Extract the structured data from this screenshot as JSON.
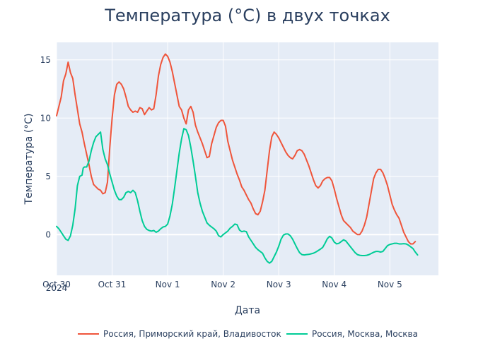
{
  "chart_data": {
    "type": "line",
    "title": "Температура (°C) в двух точках",
    "xlabel": "Дата",
    "ylabel": "Температура (°C)",
    "x_ticks": [
      "Oct 30",
      "Oct 31",
      "Nov 1",
      "Nov 2",
      "Nov 3",
      "Nov 4",
      "Nov 5"
    ],
    "x_tick_year": "2024",
    "y_ticks": [
      0,
      5,
      10,
      15
    ],
    "xlim": [
      0,
      165
    ],
    "ylim": [
      -3.5,
      16.5
    ],
    "grid": true,
    "legend_position": "bottom",
    "series": [
      {
        "name": "Россия, Приморский край, Владивосток",
        "color": "#ef553b",
        "points": [
          [
            0,
            10.2
          ],
          [
            2,
            11.8
          ],
          [
            3,
            13.2
          ],
          [
            4,
            13.8
          ],
          [
            5,
            14.8
          ],
          [
            6,
            13.9
          ],
          [
            7,
            13.4
          ],
          [
            8,
            12.0
          ],
          [
            10,
            9.5
          ],
          [
            11,
            8.8
          ],
          [
            12,
            7.8
          ],
          [
            14,
            6.0
          ],
          [
            15,
            5.0
          ],
          [
            16,
            4.3
          ],
          [
            18,
            3.9
          ],
          [
            19,
            3.8
          ],
          [
            20,
            3.5
          ],
          [
            21,
            3.6
          ],
          [
            22,
            4.5
          ],
          [
            23,
            7.5
          ],
          [
            24,
            10.0
          ],
          [
            25,
            12.0
          ],
          [
            26,
            12.9
          ],
          [
            27,
            13.1
          ],
          [
            28,
            12.9
          ],
          [
            29,
            12.5
          ],
          [
            30,
            11.8
          ],
          [
            31,
            11.0
          ],
          [
            32,
            10.7
          ],
          [
            33,
            10.5
          ],
          [
            34,
            10.6
          ],
          [
            35,
            10.5
          ],
          [
            36,
            10.9
          ],
          [
            37,
            10.8
          ],
          [
            38,
            10.3
          ],
          [
            39,
            10.6
          ],
          [
            40,
            10.9
          ],
          [
            41,
            10.7
          ],
          [
            42,
            10.8
          ],
          [
            43,
            12.0
          ],
          [
            44,
            13.6
          ],
          [
            45,
            14.6
          ],
          [
            46,
            15.2
          ],
          [
            47,
            15.5
          ],
          [
            48,
            15.3
          ],
          [
            49,
            14.8
          ],
          [
            50,
            14.0
          ],
          [
            51,
            13.0
          ],
          [
            52,
            12.0
          ],
          [
            53,
            11.0
          ],
          [
            54,
            10.7
          ],
          [
            55,
            10.0
          ],
          [
            56,
            9.5
          ],
          [
            57,
            10.7
          ],
          [
            58,
            11.0
          ],
          [
            59,
            10.5
          ],
          [
            60,
            9.4
          ],
          [
            61,
            8.8
          ],
          [
            62,
            8.3
          ],
          [
            63,
            7.8
          ],
          [
            64,
            7.2
          ],
          [
            65,
            6.6
          ],
          [
            66,
            6.7
          ],
          [
            67,
            7.8
          ],
          [
            68,
            8.5
          ],
          [
            69,
            9.2
          ],
          [
            70,
            9.6
          ],
          [
            71,
            9.8
          ],
          [
            72,
            9.8
          ],
          [
            73,
            9.3
          ],
          [
            74,
            8.0
          ],
          [
            75,
            7.2
          ],
          [
            76,
            6.4
          ],
          [
            77,
            5.8
          ],
          [
            78,
            5.2
          ],
          [
            79,
            4.7
          ],
          [
            80,
            4.1
          ],
          [
            81,
            3.8
          ],
          [
            82,
            3.4
          ],
          [
            83,
            3.0
          ],
          [
            84,
            2.7
          ],
          [
            85,
            2.2
          ],
          [
            86,
            1.8
          ],
          [
            87,
            1.7
          ],
          [
            88,
            2.0
          ],
          [
            89,
            2.8
          ],
          [
            90,
            3.8
          ],
          [
            91,
            5.5
          ],
          [
            92,
            7.2
          ],
          [
            93,
            8.4
          ],
          [
            94,
            8.8
          ],
          [
            95,
            8.6
          ],
          [
            96,
            8.3
          ],
          [
            97,
            7.9
          ],
          [
            98,
            7.5
          ],
          [
            99,
            7.1
          ],
          [
            100,
            6.8
          ],
          [
            101,
            6.6
          ],
          [
            102,
            6.5
          ],
          [
            103,
            6.8
          ],
          [
            104,
            7.2
          ],
          [
            105,
            7.3
          ],
          [
            106,
            7.2
          ],
          [
            107,
            6.9
          ],
          [
            108,
            6.4
          ],
          [
            109,
            5.9
          ],
          [
            110,
            5.3
          ],
          [
            111,
            4.7
          ],
          [
            112,
            4.2
          ],
          [
            113,
            4.0
          ],
          [
            114,
            4.2
          ],
          [
            115,
            4.6
          ],
          [
            116,
            4.8
          ],
          [
            117,
            4.9
          ],
          [
            118,
            4.9
          ],
          [
            119,
            4.6
          ],
          [
            120,
            3.9
          ],
          [
            121,
            3.1
          ],
          [
            122,
            2.4
          ],
          [
            123,
            1.7
          ],
          [
            124,
            1.2
          ],
          [
            125,
            1.0
          ],
          [
            126,
            0.8
          ],
          [
            127,
            0.6
          ],
          [
            128,
            0.3
          ],
          [
            129,
            0.15
          ],
          [
            130,
            0.0
          ],
          [
            131,
            0.0
          ],
          [
            132,
            0.3
          ],
          [
            133,
            0.8
          ],
          [
            134,
            1.5
          ],
          [
            135,
            2.6
          ],
          [
            136,
            3.7
          ],
          [
            137,
            4.8
          ],
          [
            138,
            5.3
          ],
          [
            139,
            5.6
          ],
          [
            140,
            5.6
          ],
          [
            141,
            5.3
          ],
          [
            142,
            4.8
          ],
          [
            143,
            4.2
          ],
          [
            144,
            3.4
          ],
          [
            145,
            2.6
          ],
          [
            146,
            2.1
          ],
          [
            147,
            1.7
          ],
          [
            148,
            1.4
          ],
          [
            149,
            0.8
          ],
          [
            150,
            0.2
          ],
          [
            151,
            -0.2
          ],
          [
            152,
            -0.6
          ],
          [
            153,
            -0.8
          ],
          [
            154,
            -0.8
          ],
          [
            155,
            -0.6
          ]
        ]
      },
      {
        "name": "Россия, Москва, Москва",
        "color": "#00cc96",
        "points": [
          [
            0,
            0.7
          ],
          [
            1,
            0.5
          ],
          [
            2,
            0.2
          ],
          [
            3,
            -0.1
          ],
          [
            4,
            -0.4
          ],
          [
            5,
            -0.5
          ],
          [
            6,
            -0.1
          ],
          [
            7,
            0.8
          ],
          [
            8,
            2.2
          ],
          [
            9,
            4.2
          ],
          [
            10,
            5.0
          ],
          [
            11,
            5.1
          ],
          [
            11.5,
            5.7
          ],
          [
            12,
            5.8
          ],
          [
            13,
            5.8
          ],
          [
            14,
            6.3
          ],
          [
            15,
            7.2
          ],
          [
            16,
            7.9
          ],
          [
            17,
            8.4
          ],
          [
            18,
            8.6
          ],
          [
            19,
            8.8
          ],
          [
            20,
            7.3
          ],
          [
            21,
            6.5
          ],
          [
            22,
            6.0
          ],
          [
            23,
            5.2
          ],
          [
            24,
            4.5
          ],
          [
            25,
            3.8
          ],
          [
            26,
            3.3
          ],
          [
            27,
            3.0
          ],
          [
            28,
            3.0
          ],
          [
            29,
            3.2
          ],
          [
            30,
            3.6
          ],
          [
            31,
            3.7
          ],
          [
            32,
            3.6
          ],
          [
            33,
            3.8
          ],
          [
            34,
            3.6
          ],
          [
            35,
            2.9
          ],
          [
            36,
            2.0
          ],
          [
            37,
            1.2
          ],
          [
            38,
            0.7
          ],
          [
            39,
            0.45
          ],
          [
            40,
            0.35
          ],
          [
            41,
            0.3
          ],
          [
            42,
            0.35
          ],
          [
            43,
            0.2
          ],
          [
            44,
            0.3
          ],
          [
            45,
            0.5
          ],
          [
            46,
            0.65
          ],
          [
            47,
            0.7
          ],
          [
            48,
            0.9
          ],
          [
            49,
            1.6
          ],
          [
            50,
            2.6
          ],
          [
            51,
            4.0
          ],
          [
            52,
            5.5
          ],
          [
            53,
            7.0
          ],
          [
            54,
            8.2
          ],
          [
            55,
            9.1
          ],
          [
            56,
            9.0
          ],
          [
            57,
            8.5
          ],
          [
            58,
            7.5
          ],
          [
            59,
            6.3
          ],
          [
            60,
            5.0
          ],
          [
            61,
            3.6
          ],
          [
            62,
            2.7
          ],
          [
            63,
            2.0
          ],
          [
            64,
            1.5
          ],
          [
            65,
            1.0
          ],
          [
            66,
            0.8
          ],
          [
            67,
            0.65
          ],
          [
            68,
            0.5
          ],
          [
            69,
            0.3
          ],
          [
            70,
            -0.1
          ],
          [
            71,
            -0.2
          ],
          [
            72,
            0.0
          ],
          [
            73,
            0.15
          ],
          [
            74,
            0.3
          ],
          [
            75,
            0.55
          ],
          [
            76,
            0.7
          ],
          [
            77,
            0.9
          ],
          [
            78,
            0.85
          ],
          [
            79,
            0.4
          ],
          [
            80,
            0.25
          ],
          [
            81,
            0.3
          ],
          [
            82,
            0.25
          ],
          [
            83,
            -0.2
          ],
          [
            84,
            -0.5
          ],
          [
            85,
            -0.8
          ],
          [
            86,
            -1.1
          ],
          [
            87,
            -1.3
          ],
          [
            88,
            -1.45
          ],
          [
            89,
            -1.6
          ],
          [
            90,
            -2.0
          ],
          [
            91,
            -2.3
          ],
          [
            92,
            -2.45
          ],
          [
            93,
            -2.3
          ],
          [
            94,
            -1.9
          ],
          [
            95,
            -1.5
          ],
          [
            96,
            -1.0
          ],
          [
            97,
            -0.4
          ],
          [
            98,
            -0.05
          ],
          [
            99,
            0.05
          ],
          [
            100,
            0.05
          ],
          [
            101,
            -0.1
          ],
          [
            102,
            -0.4
          ],
          [
            103,
            -0.8
          ],
          [
            104,
            -1.2
          ],
          [
            105,
            -1.55
          ],
          [
            106,
            -1.72
          ],
          [
            107,
            -1.75
          ],
          [
            108,
            -1.72
          ],
          [
            109,
            -1.7
          ],
          [
            110,
            -1.65
          ],
          [
            111,
            -1.6
          ],
          [
            112,
            -1.5
          ],
          [
            113,
            -1.38
          ],
          [
            114,
            -1.25
          ],
          [
            115,
            -1.1
          ],
          [
            116,
            -0.75
          ],
          [
            117,
            -0.35
          ],
          [
            118,
            -0.15
          ],
          [
            119,
            -0.3
          ],
          [
            120,
            -0.65
          ],
          [
            121,
            -0.8
          ],
          [
            122,
            -0.75
          ],
          [
            123,
            -0.6
          ],
          [
            124,
            -0.45
          ],
          [
            125,
            -0.55
          ],
          [
            126,
            -0.8
          ],
          [
            127,
            -1.05
          ],
          [
            128,
            -1.3
          ],
          [
            129,
            -1.55
          ],
          [
            130,
            -1.72
          ],
          [
            131,
            -1.78
          ],
          [
            132,
            -1.8
          ],
          [
            133,
            -1.8
          ],
          [
            134,
            -1.78
          ],
          [
            135,
            -1.72
          ],
          [
            136,
            -1.62
          ],
          [
            137,
            -1.52
          ],
          [
            138,
            -1.45
          ],
          [
            139,
            -1.45
          ],
          [
            140,
            -1.5
          ],
          [
            141,
            -1.45
          ],
          [
            142,
            -1.2
          ],
          [
            143,
            -0.95
          ],
          [
            144,
            -0.85
          ],
          [
            145,
            -0.8
          ],
          [
            146,
            -0.75
          ],
          [
            147,
            -0.75
          ],
          [
            148,
            -0.8
          ],
          [
            149,
            -0.8
          ],
          [
            150,
            -0.78
          ],
          [
            151,
            -0.8
          ],
          [
            152,
            -0.9
          ],
          [
            153,
            -1.05
          ],
          [
            154,
            -1.2
          ],
          [
            155,
            -1.5
          ],
          [
            156,
            -1.75
          ]
        ]
      }
    ]
  }
}
